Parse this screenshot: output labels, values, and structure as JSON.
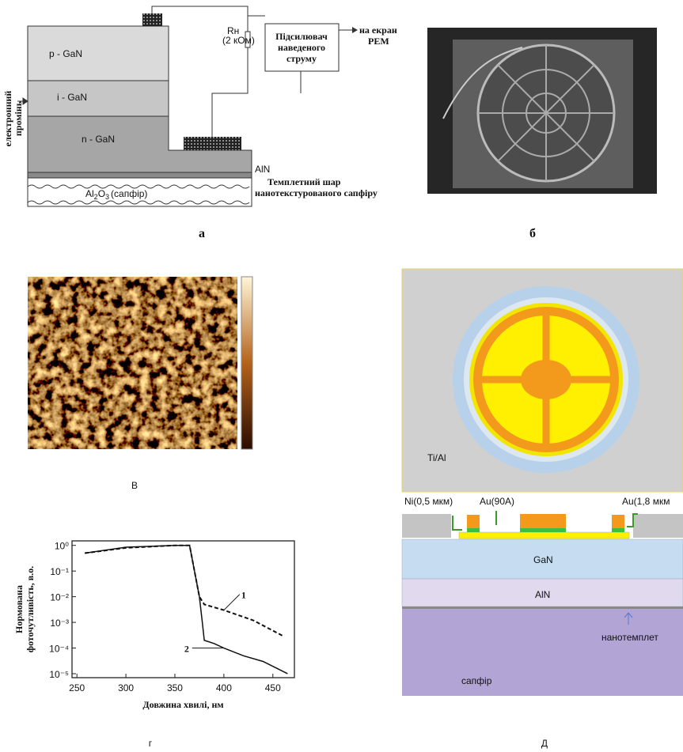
{
  "panels": {
    "a": {
      "label": "а",
      "layers": [
        "p - GaN",
        "i - GaN",
        "n - GaN"
      ],
      "buffer": "AlN",
      "substrate": [
        "Al",
        "2",
        "O",
        "3",
        "(сапфір)"
      ],
      "beam": [
        "електронний",
        "промінь"
      ],
      "resistor": "Rн",
      "resistor_value": "(2 кОм)",
      "amplifier": [
        "Підсилювач",
        "наведеного",
        "струму"
      ],
      "output": [
        "на екран",
        "РЕМ"
      ],
      "template": [
        "Темплетний шар",
        "нанотекстурованого сапфіру"
      ]
    },
    "b": {
      "label": "б"
    },
    "c": {
      "label": "В"
    },
    "d": {
      "label": "Д",
      "metal": "Ti/Al",
      "contacts": [
        "Ni(0,5 мкм)",
        "Au(90A)",
        "Au(1,8 мкм"
      ],
      "layers": [
        "GaN",
        "AlN",
        "нанотемплет",
        "сапфір"
      ]
    },
    "g": {
      "label": "г"
    }
  },
  "chart_data": {
    "type": "line",
    "xlabel": "Довжина хвилі, нм",
    "ylabel": [
      "Нормована",
      "фоточутливість, в.о."
    ],
    "log_y": true,
    "xlim": [
      245,
      472
    ],
    "ylim": [
      7e-06,
      1.5
    ],
    "xticks": [
      250,
      300,
      350,
      400,
      450
    ],
    "yticks": [
      {
        "value": 1,
        "label": "10⁰"
      },
      {
        "value": 0.1,
        "label": "10⁻¹"
      },
      {
        "value": 0.01,
        "label": "10⁻²"
      },
      {
        "value": 0.001,
        "label": "10⁻³"
      },
      {
        "value": 0.0001,
        "label": "10⁻⁴"
      },
      {
        "value": 1e-05,
        "label": "10⁻⁵"
      }
    ],
    "series": [
      {
        "name": "1",
        "color": "#111111",
        "dashed": true,
        "x": [
          258,
          300,
          350,
          365,
          370,
          375,
          380,
          400,
          430,
          460
        ],
        "values": [
          0.5,
          0.8,
          1,
          1,
          0.1,
          0.01,
          0.005,
          0.003,
          0.0012,
          0.0003
        ]
      },
      {
        "name": "2",
        "color": "#111111",
        "dashed": false,
        "x": [
          258,
          300,
          350,
          365,
          370,
          375,
          378,
          380,
          390,
          400,
          420,
          440,
          465
        ],
        "values": [
          0.5,
          0.85,
          1,
          1,
          0.1,
          0.01,
          0.001,
          0.0002,
          0.00015,
          0.0001,
          5e-05,
          3e-05,
          1e-05
        ]
      }
    ]
  }
}
